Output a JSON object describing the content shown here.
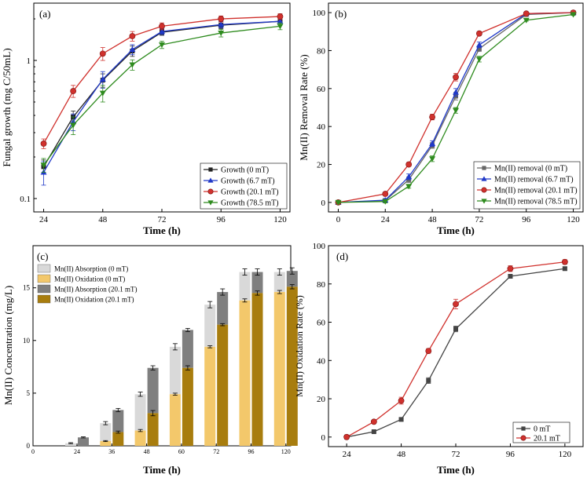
{
  "colors": {
    "black": "#222222",
    "blue": "#2039c8",
    "red": "#d0312d",
    "green": "#2e8b1e",
    "absorption_0": "#d9d9d9",
    "oxidation_0": "#f3c86b",
    "absorption_20": "#7f7f7f",
    "oxidation_20": "#a87d0e"
  },
  "chart_data": [
    {
      "panel": "(a)",
      "type": "line",
      "xlabel": "Time (h)",
      "ylabel": "Fungal growth (mg C/50mL)",
      "yscale": "log",
      "x": [
        24,
        36,
        48,
        60,
        72,
        96,
        120
      ],
      "xticks": [
        "24",
        "48",
        "72",
        "96",
        "120"
      ],
      "xlim": [
        20,
        124
      ],
      "ylim": [
        0.08,
        2.6
      ],
      "yticks": [
        "0.1",
        "1"
      ],
      "ytick_values": [
        0.1,
        1
      ],
      "legend_position": "bottom-right",
      "series": [
        {
          "name": "Growth (0 mT)",
          "color": "#222222",
          "marker": "square",
          "values": [
            0.17,
            0.39,
            0.72,
            1.17,
            1.6,
            1.8,
            1.92
          ],
          "errors": [
            0.02,
            0.04,
            0.08,
            0.1,
            0.08,
            0.1,
            0.1
          ]
        },
        {
          "name": "Growth (6.7 mT)",
          "color": "#2039c8",
          "marker": "triangle",
          "values": [
            0.155,
            0.36,
            0.73,
            1.2,
            1.62,
            1.82,
            1.92
          ],
          "errors": [
            0.03,
            0.05,
            0.1,
            0.1,
            0.08,
            0.1,
            0.1
          ]
        },
        {
          "name": "Growth (20.1 mT)",
          "color": "#d0312d",
          "marker": "circle",
          "values": [
            0.25,
            0.6,
            1.12,
            1.5,
            1.77,
            2.0,
            2.08
          ],
          "errors": [
            0.02,
            0.06,
            0.12,
            0.12,
            0.1,
            0.1,
            0.1
          ]
        },
        {
          "name": "Growth (78.5 mT)",
          "color": "#2e8b1e",
          "marker": "triangle-down",
          "values": [
            0.175,
            0.34,
            0.58,
            0.93,
            1.3,
            1.58,
            1.77
          ],
          "errors": [
            0.02,
            0.05,
            0.08,
            0.08,
            0.08,
            0.1,
            0.1
          ]
        }
      ]
    },
    {
      "panel": "(b)",
      "type": "line",
      "xlabel": "Time (h)",
      "ylabel": "Mn(II) Removal Rate (%)",
      "x": [
        0,
        24,
        36,
        48,
        60,
        72,
        96,
        120
      ],
      "xticks": [
        "0",
        "24",
        "48",
        "72",
        "96",
        "120"
      ],
      "xlim": [
        -5,
        125
      ],
      "ylim": [
        -5,
        105
      ],
      "yticks": [
        "0",
        "20",
        "40",
        "60",
        "80",
        "100"
      ],
      "ytick_values": [
        0,
        20,
        40,
        60,
        80,
        100
      ],
      "legend_position": "bottom-right",
      "series": [
        {
          "name": "Mn(II) removal (0 mT)",
          "color": "#666666",
          "marker": "square",
          "values": [
            0,
            1,
            12,
            30,
            56,
            81,
            99,
            100
          ],
          "errors": [
            0.5,
            0.8,
            1.5,
            1.5,
            2,
            1.5,
            0.5,
            0.5
          ]
        },
        {
          "name": "Mn(II) removal (6.7 mT)",
          "color": "#2039c8",
          "marker": "triangle",
          "values": [
            0,
            1.2,
            13.5,
            31,
            58,
            83,
            99.5,
            100
          ],
          "errors": [
            0.5,
            0.8,
            1.5,
            1.5,
            2,
            1.5,
            0.5,
            0.5
          ]
        },
        {
          "name": "Mn(II) removal (20.1 mT)",
          "color": "#d0312d",
          "marker": "circle",
          "values": [
            0,
            4.5,
            20,
            45,
            66,
            89,
            99.5,
            100
          ],
          "errors": [
            0.5,
            0.8,
            1,
            1.5,
            2,
            1,
            0.5,
            0.5
          ]
        },
        {
          "name": "Mn(II) removal (78.5 mT)",
          "color": "#2e8b1e",
          "marker": "triangle-down",
          "values": [
            0,
            0.5,
            8.5,
            23,
            48.5,
            75.5,
            96,
            99
          ],
          "errors": [
            0.5,
            0.8,
            1,
            1.5,
            1.5,
            1.5,
            0.5,
            0.5
          ]
        }
      ]
    },
    {
      "panel": "(c)",
      "type": "bar",
      "stacked": true,
      "xlabel": "Time (h)",
      "ylabel": "Mn(II) Concentration (mg/L)",
      "categories": [
        "24",
        "36",
        "48",
        "60",
        "72",
        "96",
        "120"
      ],
      "xticks": [
        "0",
        "24",
        "36",
        "48",
        "60",
        "72",
        "96",
        "120"
      ],
      "ylim": [
        0,
        19
      ],
      "yticks": [
        "0",
        "5",
        "10",
        "15"
      ],
      "ytick_values": [
        0,
        5,
        10,
        15
      ],
      "legend_position": "top-left",
      "series": [
        {
          "name": "Mn(II) Absorption (0 mT)",
          "color": "#d9d9d9",
          "stack": "0 mT",
          "layer": "top",
          "totals": [
            0.25,
            2.15,
            4.9,
            9.4,
            13.4,
            16.5,
            16.5
          ],
          "errors": [
            0.05,
            0.15,
            0.2,
            0.3,
            0.3,
            0.3,
            0.3
          ]
        },
        {
          "name": "Mn(II) Oxidation (0 mT)",
          "color": "#f3c86b",
          "stack": "0 mT",
          "layer": "bottom",
          "values": [
            0,
            0.45,
            1.45,
            4.9,
            9.4,
            13.8,
            14.6
          ],
          "errors": [
            0,
            0.05,
            0.1,
            0.1,
            0.1,
            0.15,
            0.15
          ]
        },
        {
          "name": "Mn(II) Absorption (20.1 mT)",
          "color": "#7f7f7f",
          "stack": "20.1 mT",
          "layer": "top",
          "totals": [
            0.8,
            3.4,
            7.4,
            11.0,
            14.6,
            16.5,
            16.6
          ],
          "errors": [
            0.05,
            0.15,
            0.2,
            0.15,
            0.3,
            0.3,
            0.3
          ]
        },
        {
          "name": "Mn(II) Oxidation (20.1 mT)",
          "color": "#a87d0e",
          "stack": "20.1 mT",
          "layer": "bottom",
          "values": [
            0,
            1.3,
            3.1,
            7.4,
            11.5,
            14.5,
            15.1
          ],
          "errors": [
            0,
            0.1,
            0.25,
            0.2,
            0.1,
            0.2,
            0.2
          ]
        }
      ]
    },
    {
      "panel": "(d)",
      "type": "line",
      "xlabel": "Time (h)",
      "ylabel": "Mn(II) Oxidation Rate (%)",
      "x": [
        24,
        36,
        48,
        60,
        72,
        96,
        120
      ],
      "xticks": [
        "24",
        "48",
        "72",
        "96",
        "120"
      ],
      "xlim": [
        16,
        128
      ],
      "ylim": [
        -5,
        100
      ],
      "yticks": [
        "0",
        "20",
        "40",
        "60",
        "80",
        "100"
      ],
      "ytick_values": [
        0,
        20,
        40,
        60,
        80,
        100
      ],
      "legend_position": "bottom-right",
      "series": [
        {
          "name": "0 mT",
          "color": "#444444",
          "marker": "square",
          "values": [
            0,
            2.8,
            9.2,
            29.5,
            56.5,
            84,
            88
          ],
          "errors": [
            0.3,
            0.5,
            0.8,
            1.5,
            1.5,
            1,
            0.8
          ]
        },
        {
          "name": "20.1 mT",
          "color": "#d0312d",
          "marker": "circle",
          "values": [
            0,
            8,
            19,
            45,
            69.5,
            88,
            91.5
          ],
          "errors": [
            0.3,
            0.8,
            1.8,
            1.2,
            2.5,
            1.5,
            1.2
          ]
        }
      ]
    }
  ]
}
